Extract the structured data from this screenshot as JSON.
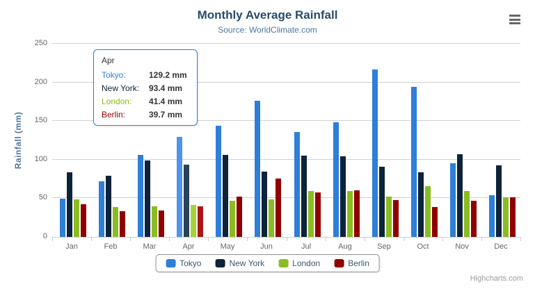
{
  "header": {
    "title": "Monthly Average Rainfall",
    "subtitle": "Source: WorldClimate.com"
  },
  "credits": "Highcharts.com",
  "colors": {
    "title": "#274b6d",
    "subtitle": "#4d759e",
    "axis_title": "#4d759e",
    "axis_labels": "#666666",
    "grid_line": "#d0d0d0",
    "axis_line": "#c0d0e0",
    "legend_border": "#909090",
    "legend_text": "#3e576f",
    "tooltip_border": "#2f7ed8",
    "export_icon": "#666666"
  },
  "chart_data": {
    "type": "bar",
    "title": "Monthly Average Rainfall",
    "subtitle": "Source: WorldClimate.com",
    "xlabel": "",
    "ylabel": "Rainfall (mm)",
    "ylim": [
      0,
      250
    ],
    "y_ticks": [
      0,
      50,
      100,
      150,
      200,
      250
    ],
    "grid": true,
    "legend_position": "bottom",
    "categories": [
      "Jan",
      "Feb",
      "Mar",
      "Apr",
      "May",
      "Jun",
      "Jul",
      "Aug",
      "Sep",
      "Oct",
      "Nov",
      "Dec"
    ],
    "series": [
      {
        "name": "Tokyo",
        "color": "#2f7ed8",
        "hover_color": "#4f93ea",
        "values": [
          49.9,
          71.5,
          106.4,
          129.2,
          144.0,
          176.0,
          135.6,
          148.5,
          216.4,
          194.1,
          95.6,
          54.4
        ]
      },
      {
        "name": "New York",
        "color": "#0d233a",
        "hover_color": "#2b4258",
        "values": [
          83.6,
          78.8,
          98.5,
          93.4,
          106.0,
          84.5,
          105.0,
          104.3,
          91.2,
          83.5,
          106.6,
          92.3
        ]
      },
      {
        "name": "London",
        "color": "#8bbc21",
        "hover_color": "#a2d338",
        "values": [
          48.9,
          38.8,
          39.3,
          41.4,
          47.0,
          48.3,
          59.0,
          59.6,
          52.4,
          65.2,
          59.3,
          51.2
        ]
      },
      {
        "name": "Berlin",
        "color": "#910000",
        "hover_color": "#ac1616",
        "values": [
          42.4,
          33.2,
          34.5,
          39.7,
          52.6,
          75.5,
          57.4,
          60.4,
          47.6,
          39.1,
          46.8,
          51.1
        ]
      }
    ],
    "hovered_category": "Apr"
  },
  "tooltip": {
    "header": "Apr",
    "rows": [
      {
        "label": "Tokyo:",
        "value": "129.2 mm",
        "color": "#2f7ed8"
      },
      {
        "label": "New York:",
        "value": "93.4 mm",
        "color": "#0d233a"
      },
      {
        "label": "London:",
        "value": "41.4 mm",
        "color": "#8bbc21"
      },
      {
        "label": "Berlin:",
        "value": "39.7 mm",
        "color": "#910000"
      }
    ]
  }
}
